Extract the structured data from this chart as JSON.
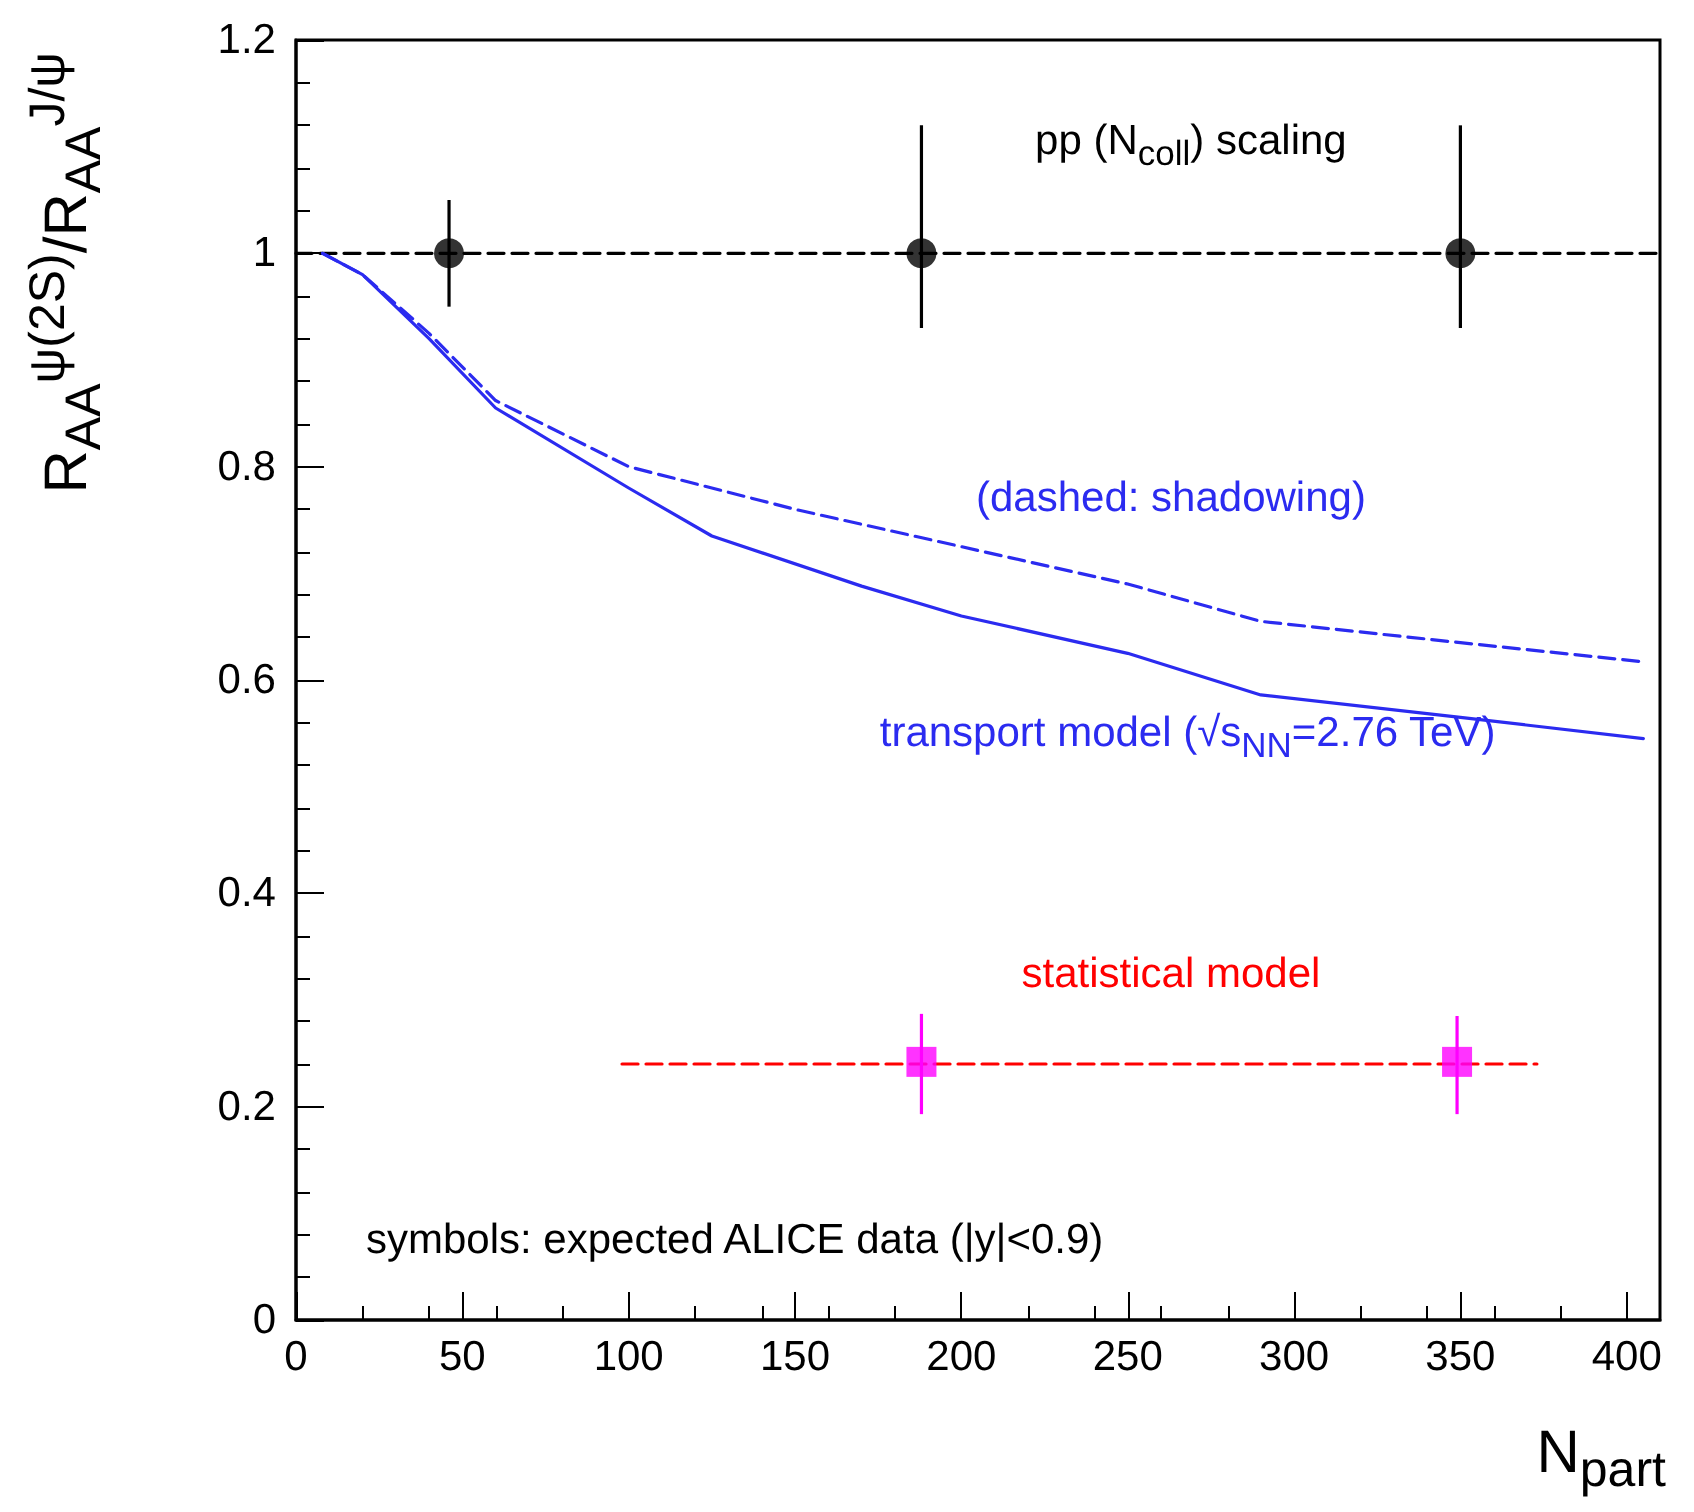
{
  "chart_data": {
    "type": "line",
    "xlabel": "N$_{part}$",
    "ylabel": "R$_{AA}$$^{ψ(2S)}$/R$_{AA}$$^{J/ψ}$",
    "xlim": [
      0,
      410
    ],
    "xticks": [
      0,
      50,
      100,
      150,
      200,
      250,
      300,
      350,
      400
    ],
    "ylim": [
      0,
      1.2
    ],
    "yticks": [
      0,
      0.2,
      0.4,
      0.6,
      0.8,
      1,
      1.2
    ],
    "grid": false,
    "legend": false,
    "annotations": [
      "symbols: expected ALICE data (|y|<0.9)"
    ],
    "series": [
      {
        "name": "pp (N$_{coll}$) scaling",
        "color": "#000000",
        "line_style": "dashed",
        "marker": "none",
        "x": [
          0,
          410
        ],
        "values": [
          1,
          1
        ]
      },
      {
        "type": "scatter",
        "color": "#000000",
        "marker": "circle",
        "x": [
          46,
          188,
          350
        ],
        "values": [
          1,
          1,
          1
        ],
        "errors": [
          [
            0.95,
            1.05
          ],
          [
            0.93,
            1.12
          ],
          [
            0.93,
            1.12
          ]
        ]
      },
      {
        "name": "transport model (√s$_{NN}$=2.76 TeV)",
        "color": "#2b2bf0",
        "line_style": "solid",
        "marker": "none",
        "x": [
          8,
          20,
          40,
          60,
          100,
          125,
          170,
          200,
          250,
          290,
          350,
          405
        ],
        "values": [
          1,
          0.98,
          0.92,
          0.855,
          0.78,
          0.735,
          0.688,
          0.66,
          0.625,
          0.586,
          0.565,
          0.545
        ]
      },
      {
        "name": "(dashed: shadowing)",
        "color": "#2b2bf0",
        "line_style": "dashed",
        "marker": "none",
        "x": [
          8,
          20,
          40,
          60,
          100,
          150,
          200,
          250,
          290,
          350,
          405
        ],
        "values": [
          1,
          0.98,
          0.925,
          0.862,
          0.8,
          0.76,
          0.725,
          0.69,
          0.655,
          0.635,
          0.617
        ]
      },
      {
        "name": "statistical model",
        "color": "#ff0000",
        "line_style": "dashed",
        "marker": "none",
        "x": [
          98,
          373
        ],
        "values": [
          0.24,
          0.24
        ]
      },
      {
        "type": "scatter",
        "color": "#ff00ff",
        "marker": "square",
        "x": [
          188,
          349
        ],
        "values": [
          0.242,
          0.242
        ],
        "errors": [
          [
            0.193,
            0.287
          ],
          [
            0.193,
            0.285
          ]
        ]
      }
    ]
  }
}
